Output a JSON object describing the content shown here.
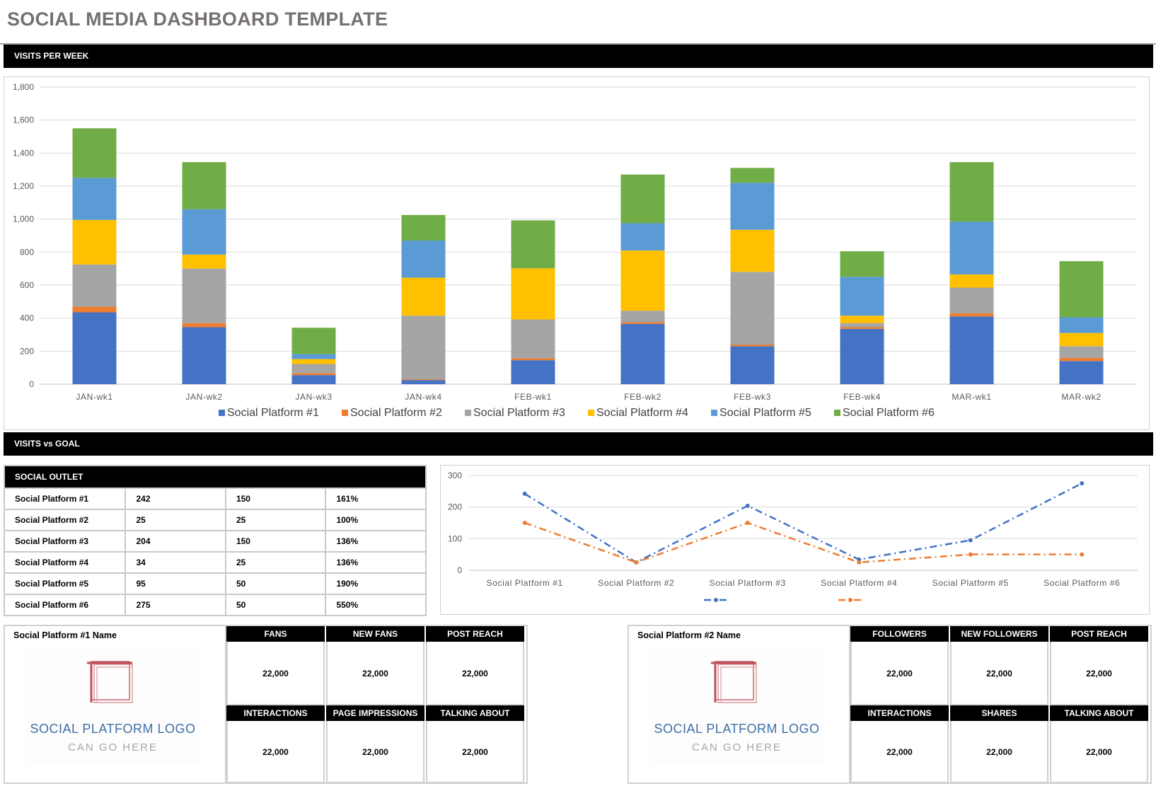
{
  "page": {
    "title": "SOCIAL MEDIA DASHBOARD TEMPLATE",
    "section_visits_week": "VISITS PER WEEK",
    "section_visits_goal": "VISITS vs GOAL"
  },
  "colors": {
    "platform1": "#4472c4",
    "platform2": "#ed7d31",
    "platform3": "#a5a5a5",
    "platform4": "#ffc000",
    "platform5": "#5b9bd5",
    "platform6": "#70ad47"
  },
  "chart_data": [
    {
      "type": "bar",
      "stacked": true,
      "categories": [
        "JAN-wk1",
        "JAN-wk2",
        "JAN-wk3",
        "JAN-wk4",
        "FEB-wk1",
        "FEB-wk2",
        "FEB-wk3",
        "FEB-wk4",
        "MAR-wk1",
        "MAR-wk2"
      ],
      "yticks": [
        "0",
        "200",
        "400",
        "600",
        "800",
        "1,000",
        "1,200",
        "1,400",
        "1,600",
        "1,800"
      ],
      "ylim": [
        0,
        1800
      ],
      "grid": true,
      "legend": "bottom",
      "series": [
        {
          "name": "Social Platform #1",
          "color": "#4472c4",
          "values": [
            435,
            345,
            55,
            25,
            145,
            365,
            230,
            335,
            410,
            140
          ]
        },
        {
          "name": "Social Platform #2",
          "color": "#ed7d31",
          "values": [
            35,
            25,
            12,
            5,
            12,
            10,
            10,
            10,
            20,
            20
          ]
        },
        {
          "name": "Social Platform #3",
          "color": "#a5a5a5",
          "values": [
            255,
            330,
            55,
            385,
            235,
            70,
            440,
            25,
            155,
            70
          ]
        },
        {
          "name": "Social Platform #4",
          "color": "#ffc000",
          "values": [
            270,
            85,
            30,
            230,
            310,
            365,
            255,
            45,
            80,
            80
          ]
        },
        {
          "name": "Social Platform #5",
          "color": "#5b9bd5",
          "values": [
            255,
            275,
            30,
            225,
            0,
            165,
            285,
            235,
            320,
            95
          ]
        },
        {
          "name": "Social Platform #6",
          "color": "#70ad47",
          "values": [
            300,
            285,
            160,
            155,
            290,
            295,
            90,
            155,
            360,
            340
          ]
        }
      ]
    },
    {
      "type": "line",
      "categories": [
        "Social Platform #1",
        "Social Platform #2",
        "Social Platform #3",
        "Social Platform #4",
        "Social Platform #5",
        "Social Platform #6"
      ],
      "yticks": [
        "0",
        "100",
        "200",
        "300"
      ],
      "ylim": [
        0,
        300
      ],
      "grid": true,
      "legend": "bottom",
      "series": [
        {
          "color": "#4472c4",
          "values": [
            242,
            25,
            204,
            34,
            95,
            275
          ]
        },
        {
          "color": "#ed7d31",
          "values": [
            150,
            25,
            150,
            25,
            50,
            50
          ]
        }
      ]
    }
  ],
  "goal_table": {
    "header": "SOCIAL OUTLET",
    "rows": [
      {
        "name": "Social Platform #1",
        "visits": "242",
        "goal": "150",
        "pct": "161%"
      },
      {
        "name": "Social Platform #2",
        "visits": "25",
        "goal": "25",
        "pct": "100%"
      },
      {
        "name": "Social Platform #3",
        "visits": "204",
        "goal": "150",
        "pct": "136%"
      },
      {
        "name": "Social Platform #4",
        "visits": "34",
        "goal": "25",
        "pct": "136%"
      },
      {
        "name": "Social Platform #5",
        "visits": "95",
        "goal": "50",
        "pct": "190%"
      },
      {
        "name": "Social Platform #6",
        "visits": "275",
        "goal": "50",
        "pct": "550%"
      }
    ]
  },
  "panel1": {
    "name": "Social Platform #1 Name",
    "logo_line1": "SOCIAL PLATFORM LOGO",
    "logo_line2": "CAN GO HERE",
    "metrics_top": [
      {
        "label": "FANS",
        "value": "22,000"
      },
      {
        "label": "NEW FANS",
        "value": "22,000"
      },
      {
        "label": "POST REACH",
        "value": "22,000"
      }
    ],
    "metrics_bottom": [
      {
        "label": "INTERACTIONS",
        "value": "22,000"
      },
      {
        "label": "PAGE IMPRESSIONS",
        "value": "22,000"
      },
      {
        "label": "TALKING ABOUT",
        "value": "22,000"
      }
    ]
  },
  "panel2": {
    "name": "Social Platform #2 Name",
    "logo_line1": "SOCIAL PLATFORM LOGO",
    "logo_line2": "CAN GO HERE",
    "metrics_top": [
      {
        "label": "FOLLOWERS",
        "value": "22,000"
      },
      {
        "label": "NEW FOLLOWERS",
        "value": "22,000"
      },
      {
        "label": "POST REACH",
        "value": "22,000"
      }
    ],
    "metrics_bottom": [
      {
        "label": "INTERACTIONS",
        "value": "22,000"
      },
      {
        "label": "SHARES",
        "value": "22,000"
      },
      {
        "label": "TALKING ABOUT",
        "value": "22,000"
      }
    ]
  }
}
